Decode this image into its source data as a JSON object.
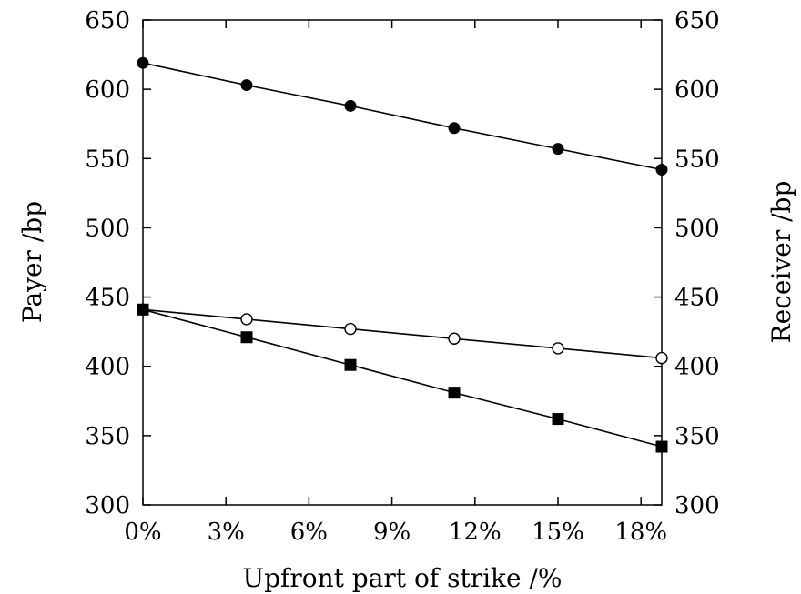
{
  "chart_data": {
    "type": "line",
    "xlabel": "Upfront part of strike /%",
    "ylabel_left": "Payer /bp",
    "ylabel_right": "Receiver /bp",
    "xlim": [
      0,
      18.75
    ],
    "ylim": [
      300,
      650
    ],
    "x_ticks": [
      0,
      3,
      6,
      9,
      12,
      15,
      18
    ],
    "x_tick_labels": [
      "0%",
      "3%",
      "6%",
      "9%",
      "12%",
      "15%",
      "18%"
    ],
    "y_ticks": [
      300,
      350,
      400,
      450,
      500,
      550,
      600,
      650
    ],
    "y_tick_labels": [
      "300",
      "350",
      "400",
      "450",
      "500",
      "550",
      "600",
      "650"
    ],
    "grid": false,
    "x": [
      0,
      3.75,
      7.5,
      11.25,
      15,
      18.75
    ],
    "series": [
      {
        "marker": "filled-circle",
        "values": [
          619,
          603,
          588,
          572,
          557,
          542
        ],
        "color": "#000000"
      },
      {
        "marker": "open-circle",
        "values": [
          441,
          434,
          427,
          420,
          413,
          406
        ],
        "color": "#000000"
      },
      {
        "marker": "filled-square",
        "values": [
          441,
          421,
          401,
          381,
          362,
          342
        ],
        "color": "#000000"
      }
    ]
  }
}
